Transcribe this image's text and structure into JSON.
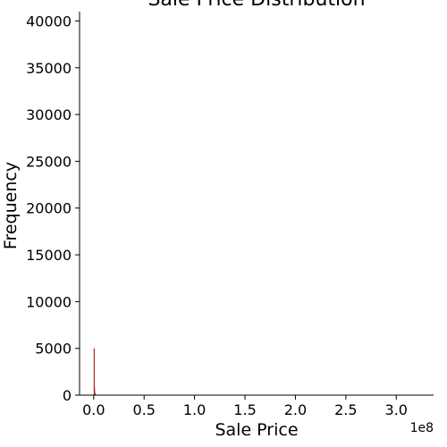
{
  "chart_data": {
    "type": "bar",
    "title": "Sale Price Distribution",
    "xlabel": "Sale Price",
    "ylabel": "Frequency",
    "x_offset_label": "1e8",
    "xlim": [
      -14000000.0,
      337000000.0
    ],
    "ylim": [
      0,
      41000
    ],
    "x_ticks": [
      0,
      50000000,
      100000000,
      150000000,
      200000000,
      250000000,
      300000000
    ],
    "x_tick_labels": [
      "0.0",
      "0.5",
      "1.0",
      "1.5",
      "2.0",
      "2.5",
      "3.0"
    ],
    "y_ticks": [
      0,
      5000,
      10000,
      15000,
      20000,
      25000,
      30000,
      35000,
      40000
    ],
    "y_tick_labels": [
      "0",
      "5000",
      "10000",
      "15000",
      "20000",
      "25000",
      "30000",
      "35000",
      "40000"
    ],
    "bar_color": "#a52a2a",
    "grid": false,
    "legend": "none",
    "series": [
      {
        "x": [
          0,
          300000,
          600000,
          900000,
          1200000
        ],
        "values": [
          5000,
          800,
          350,
          150,
          60
        ]
      }
    ]
  }
}
